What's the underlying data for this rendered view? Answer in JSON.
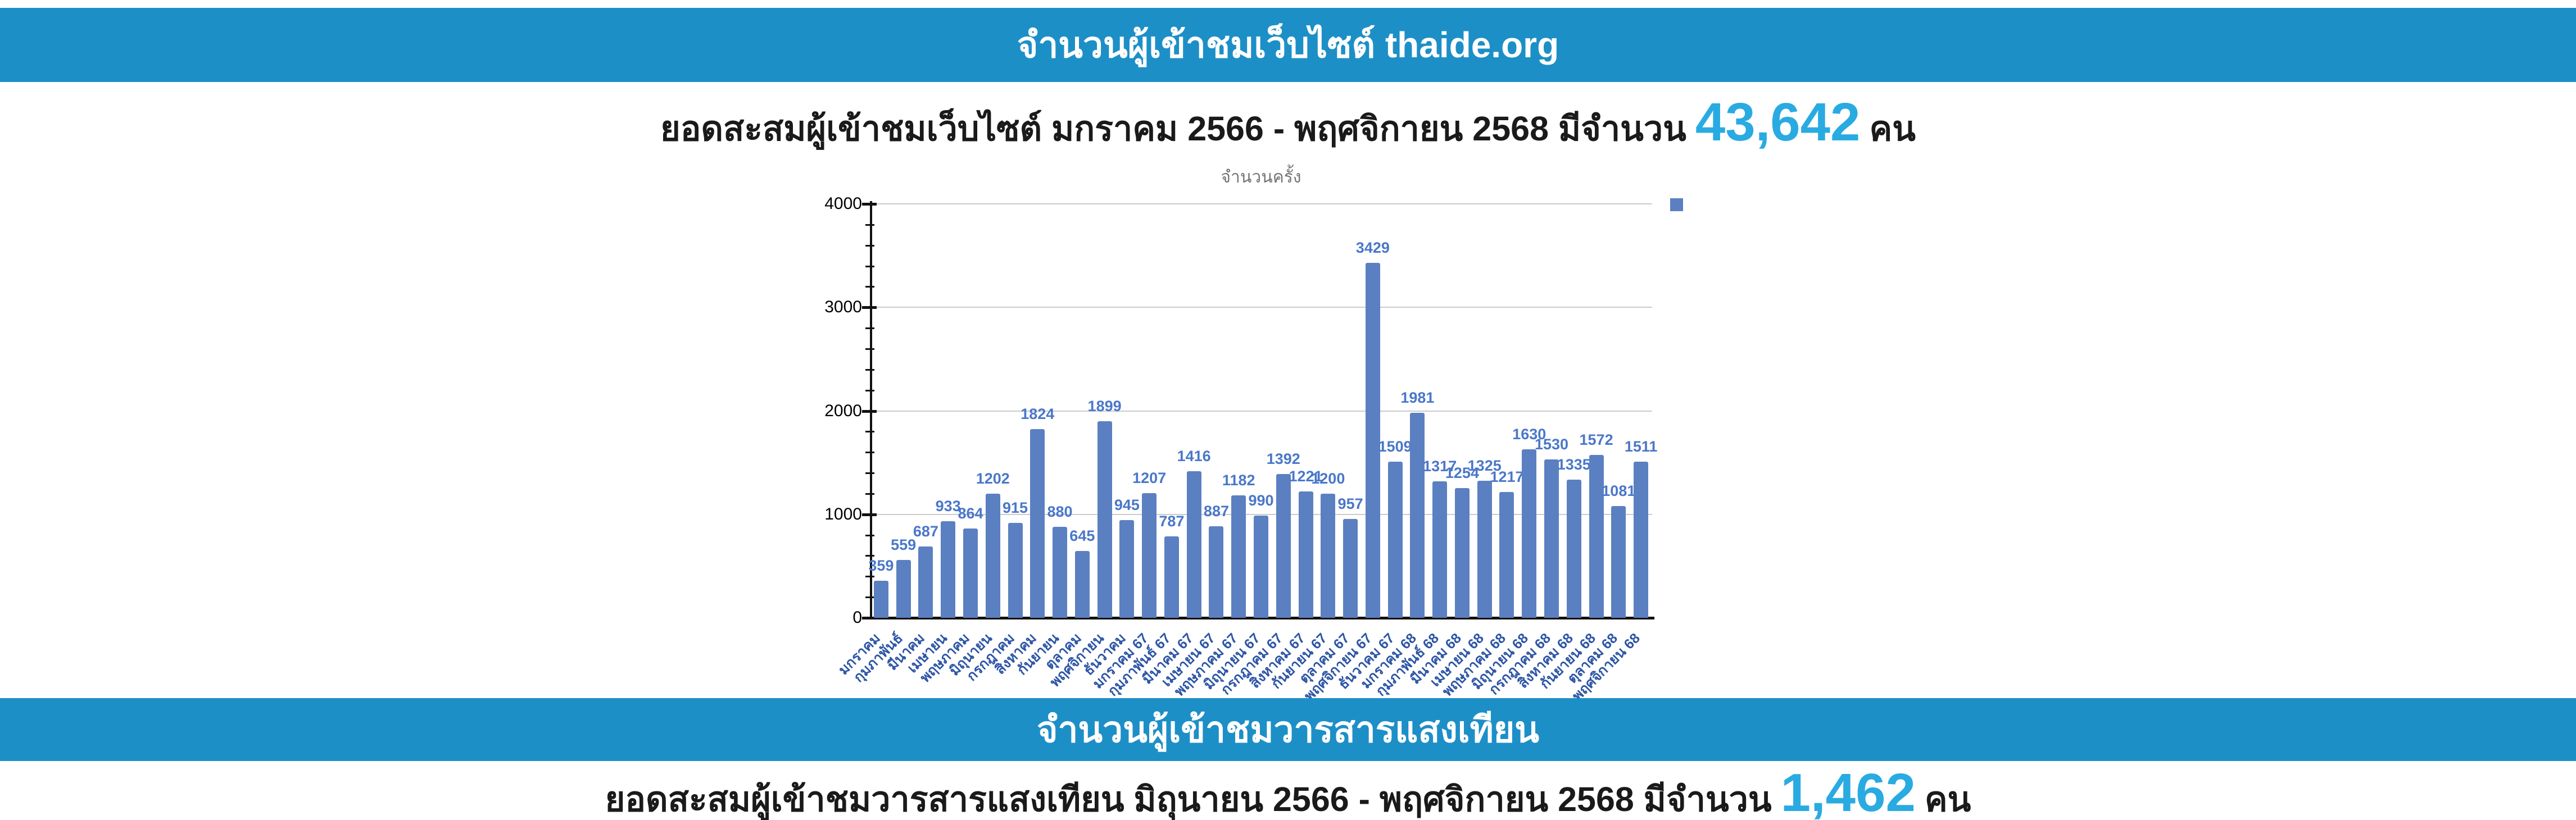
{
  "colors": {
    "header_bg": "#1d8fc7",
    "highlight_number": "#29abe2",
    "bar": "#5b80c1",
    "bar_value_label": "#4a77c9",
    "x_tick_label": "#2d55a5",
    "chart_title_gray": "#757575"
  },
  "sections": {
    "website": {
      "header": "จำนวนผู้เข้าชมเว็บไซต์ thaide.org",
      "subtitle_prefix": "ยอดสะสมผู้เข้าชมเว็บไซต์ มกราคม 2566 - พฤศจิกายน 2568 มีจำนวน",
      "total": "43,642",
      "subtitle_suffix": "คน"
    },
    "journal": {
      "header": "จำนวนผู้เข้าชมวารสารแสงเทียน",
      "subtitle_prefix": "ยอดสะสมผู้เข้าชมวารสารแสงเทียน มิถุนายน 2566 - พฤศจิกายน 2568 มีจำนวน",
      "total": "1,462",
      "subtitle_suffix": "คน"
    }
  },
  "chart_data": {
    "type": "bar",
    "title": "จำนวนครั้ง",
    "categories": [
      "มกราคม",
      "กุมภาพันธ์",
      "มีนาคม",
      "เมษายน",
      "พฤษภาคม",
      "มิถุนายน",
      "กรกฎาคม",
      "สิงหาคม",
      "กันยายน",
      "ตุลาคม",
      "พฤศจิกายน",
      "ธันวาคม",
      "มกราคม 67",
      "กุมภาพันธ์ 67",
      "มีนาคม 67",
      "เมษายน 67",
      "พฤษภาคม 67",
      "มิถุนายน 67",
      "กรกฎาคม 67",
      "สิงหาคม 67",
      "กันยายน 67",
      "ตุลาคม 67",
      "พฤศจิกายน 67",
      "ธันวาคม 67",
      "มกราคม 68",
      "กุมภาพันธ์ 68",
      "มีนาคม 68",
      "เมษายน 68",
      "พฤษภาคม 68",
      "มิถุนายน 68",
      "กรกฎาคม 68",
      "สิงหาคม 68",
      "กันยายน 68",
      "ตุลาคม 68",
      "พฤศจิกายน 68"
    ],
    "values": [
      359,
      559,
      687,
      933,
      864,
      1202,
      915,
      1824,
      880,
      645,
      1899,
      945,
      1207,
      787,
      1416,
      887,
      1182,
      990,
      1392,
      1221,
      1200,
      957,
      3429,
      1509,
      1981,
      1317,
      1254,
      1325,
      1217,
      1630,
      1530,
      1335,
      1572,
      1081,
      1511
    ],
    "xlabel": "",
    "ylabel": "",
    "ylim": [
      0,
      4000
    ],
    "yticks": [
      0,
      1000,
      2000,
      3000,
      4000
    ],
    "minor_tick_step": 200,
    "grid": true,
    "legend_position": "right",
    "data_labels": true
  }
}
